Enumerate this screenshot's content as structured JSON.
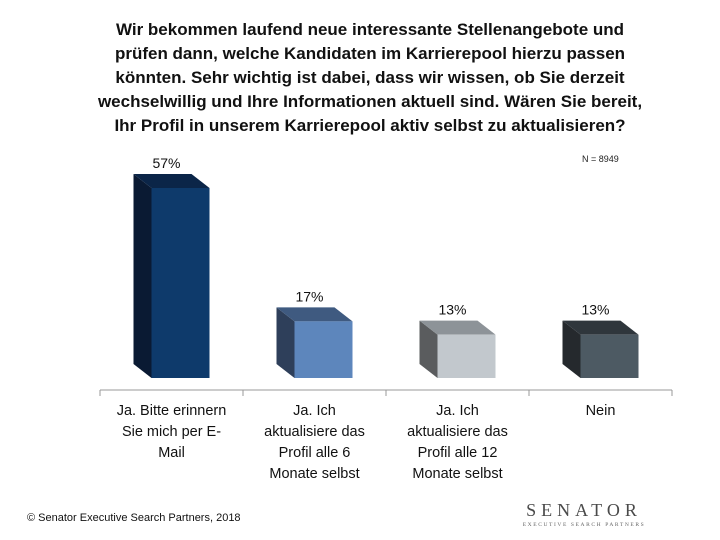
{
  "title_lines": [
    "Wir bekommen laufend neue interessante Stellenangebote und",
    "prüfen dann, welche Kandidaten im Karrierepool hierzu passen",
    "könnten. Sehr wichtig ist dabei, dass wir wissen, ob Sie derzeit",
    "wechselwillig und Ihre Informationen aktuell sind. Wären Sie bereit,",
    "Ihr Profil in unserem Karrierepool aktiv selbst zu aktualisieren?"
  ],
  "sample_note": "N = 8949",
  "footer": "© Senator Executive Search Partners, 2018",
  "logo": {
    "main": "SENATOR",
    "sub": "EXECUTIVE SEARCH PARTNERS"
  },
  "chart_data": {
    "type": "bar",
    "title": "Wir bekommen laufend neue interessante Stellenangebote und prüfen dann, welche Kandidaten im Karrierepool hierzu passen könnten. Sehr wichtig ist dabei, dass wir wissen, ob Sie derzeit wechselwillig und Ihre Informationen aktuell sind. Wären Sie bereit, Ihr Profil in unserem Karrierepool aktiv selbst zu aktualisieren?",
    "categories": [
      [
        "Ja. Bitte erinnern",
        "Sie mich per E-",
        "Mail"
      ],
      [
        "Ja. Ich",
        "aktualisiere das",
        "Profil alle 6",
        "Monate selbst"
      ],
      [
        "Ja. Ich",
        "aktualisiere das",
        "Profil alle 12",
        "Monate selbst"
      ],
      [
        "Nein"
      ]
    ],
    "values": [
      57,
      17,
      13,
      13
    ],
    "value_labels": [
      "57%",
      "17%",
      "13%",
      "13%"
    ],
    "unit": "%",
    "ylim": [
      0,
      60
    ],
    "style": "3d-column",
    "colors": {
      "front": [
        "#0e3a6b",
        "#5d86bc",
        "#c2c8cd",
        "#4d5a63"
      ],
      "side": [
        "#0a1a33",
        "#2e3f5a",
        "#5a5c5e",
        "#25292d"
      ],
      "top": [
        "#0b2548",
        "#3f5a80",
        "#8d9398",
        "#2f363c"
      ]
    }
  }
}
